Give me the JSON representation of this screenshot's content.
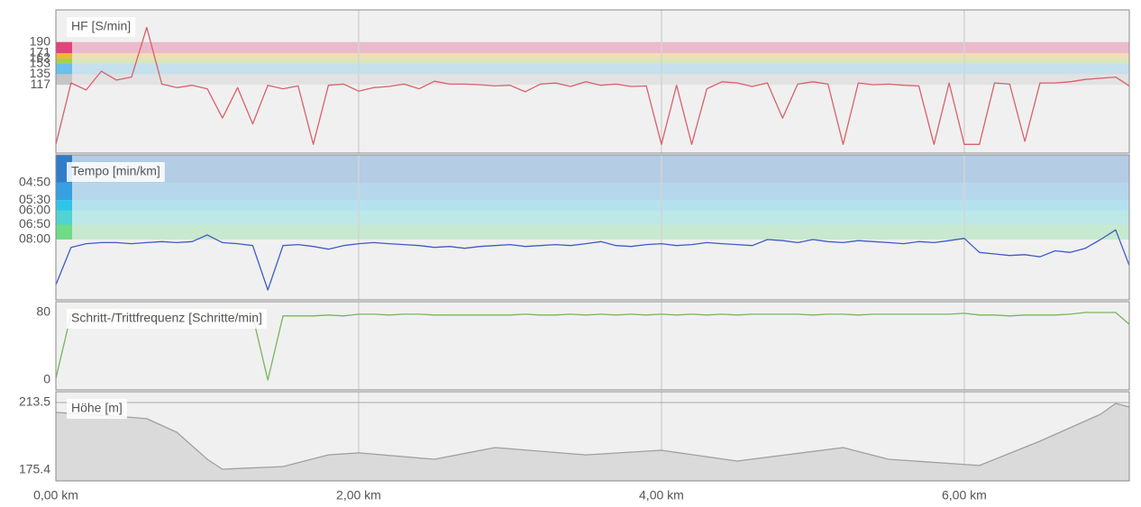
{
  "chart_data": [
    {
      "type": "line",
      "title": "HF [S/min]",
      "color": "#d9606b",
      "x": [
        0,
        0.1,
        0.2,
        0.3,
        0.4,
        0.5,
        0.6,
        0.7,
        0.8,
        0.9,
        1.0,
        1.1,
        1.2,
        1.3,
        1.4,
        1.5,
        1.6,
        1.7,
        1.8,
        1.9,
        2.0,
        2.1,
        2.2,
        2.3,
        2.4,
        2.5,
        2.6,
        2.7,
        2.8,
        2.9,
        3.0,
        3.1,
        3.2,
        3.3,
        3.4,
        3.5,
        3.6,
        3.7,
        3.8,
        3.9,
        4.0,
        4.1,
        4.2,
        4.3,
        4.4,
        4.5,
        4.6,
        4.7,
        4.8,
        4.9,
        5.0,
        5.1,
        5.2,
        5.3,
        5.4,
        5.5,
        5.6,
        5.7,
        5.8,
        5.9,
        6.0,
        6.1,
        6.2,
        6.3,
        6.4,
        6.5,
        6.6,
        6.7,
        6.8,
        6.9,
        7.0,
        7.09
      ],
      "values": [
        15,
        120,
        108,
        140,
        125,
        130,
        215,
        118,
        112,
        116,
        110,
        60,
        112,
        50,
        116,
        110,
        115,
        15,
        116,
        118,
        106,
        112,
        114,
        118,
        110,
        123,
        118,
        118,
        117,
        115,
        116,
        105,
        118,
        120,
        114,
        122,
        116,
        118,
        114,
        115,
        15,
        116,
        15,
        110,
        122,
        120,
        114,
        120,
        60,
        118,
        122,
        118,
        15,
        120,
        117,
        118,
        116,
        115,
        15,
        120,
        15,
        15,
        120,
        118,
        20,
        120,
        120,
        122,
        126,
        128,
        130,
        115
      ],
      "xlim": [
        0,
        7.09
      ],
      "ylim": [
        0,
        245
      ],
      "yticks": [
        190,
        171,
        162,
        153,
        135,
        117
      ],
      "band_colors": [
        "#e0306a",
        "#f0b020",
        "#9ecb3a",
        "#5bb8e6",
        "#c0c0c0"
      ]
    },
    {
      "type": "line",
      "title": "Tempo [min/km]",
      "color": "#3f5bc4",
      "yscale": "reciprocal",
      "x": [
        0,
        0.1,
        0.2,
        0.3,
        0.4,
        0.5,
        0.6,
        0.7,
        0.8,
        0.9,
        1.0,
        1.1,
        1.2,
        1.3,
        1.4,
        1.5,
        1.6,
        1.7,
        1.8,
        1.9,
        2.0,
        2.1,
        2.2,
        2.3,
        2.4,
        2.5,
        2.6,
        2.7,
        2.8,
        2.9,
        3.0,
        3.1,
        3.2,
        3.3,
        3.4,
        3.5,
        3.6,
        3.7,
        3.8,
        3.9,
        4.0,
        4.1,
        4.2,
        4.3,
        4.4,
        4.5,
        4.6,
        4.7,
        4.8,
        4.9,
        5.0,
        5.1,
        5.2,
        5.3,
        5.4,
        5.5,
        5.6,
        5.7,
        5.8,
        5.9,
        6.0,
        6.1,
        6.2,
        6.3,
        6.4,
        6.5,
        6.6,
        6.7,
        6.8,
        6.9,
        7.0,
        7.09
      ],
      "values": [
        16.7,
        8.8,
        8.4,
        8.3,
        8.3,
        8.4,
        8.3,
        8.2,
        8.3,
        8.2,
        7.6,
        8.3,
        8.4,
        8.6,
        19.1,
        8.6,
        8.5,
        8.7,
        9.0,
        8.6,
        8.4,
        8.3,
        8.4,
        8.5,
        8.6,
        8.8,
        8.7,
        8.9,
        8.7,
        8.6,
        8.5,
        8.7,
        8.6,
        8.5,
        8.6,
        8.4,
        8.2,
        8.6,
        8.7,
        8.5,
        8.4,
        8.6,
        8.5,
        8.3,
        8.4,
        8.5,
        8.6,
        8.0,
        8.1,
        8.3,
        8.0,
        8.2,
        8.3,
        8.1,
        8.2,
        8.3,
        8.4,
        8.2,
        8.3,
        8.1,
        7.9,
        9.4,
        9.6,
        9.8,
        9.7,
        10.0,
        9.2,
        9.4,
        8.9,
        8.0,
        7.2,
        11.4
      ],
      "xlim": [
        0,
        7.09
      ],
      "ylim": [
        26.3,
        4.05
      ],
      "yticks": [
        {
          "value": 4.8333,
          "label": "04:50"
        },
        {
          "value": 5.5,
          "label": "05:30"
        },
        {
          "value": 6,
          "label": "06:00"
        },
        {
          "value": 6.8333,
          "label": "06:50"
        },
        {
          "value": 8,
          "label": "08:00"
        }
      ],
      "band_colors": [
        "#1a6fc4",
        "#2196e0",
        "#15c0e8",
        "#3ccfcf",
        "#5ed87a"
      ]
    },
    {
      "type": "line",
      "title": "Schritt-/Trittfrequenz [Schritte/min]",
      "color": "#7ab55c",
      "x": [
        0,
        0.1,
        0.2,
        0.3,
        0.4,
        0.5,
        0.6,
        0.7,
        0.8,
        0.9,
        1.0,
        1.1,
        1.2,
        1.3,
        1.4,
        1.5,
        1.6,
        1.7,
        1.8,
        1.9,
        2.0,
        2.1,
        2.2,
        2.3,
        2.4,
        2.5,
        2.6,
        2.7,
        2.8,
        2.9,
        3.0,
        3.1,
        3.2,
        3.3,
        3.4,
        3.5,
        3.6,
        3.7,
        3.8,
        3.9,
        4.0,
        4.1,
        4.2,
        4.3,
        4.4,
        4.5,
        4.6,
        4.7,
        4.8,
        4.9,
        5.0,
        5.1,
        5.2,
        5.3,
        5.4,
        5.5,
        5.6,
        5.7,
        5.8,
        5.9,
        6.0,
        6.1,
        6.2,
        6.3,
        6.4,
        6.5,
        6.6,
        6.7,
        6.8,
        6.9,
        7.0,
        7.09
      ],
      "values": [
        2,
        78,
        77,
        76,
        77,
        76,
        77,
        76,
        76,
        77,
        76,
        76,
        77,
        76,
        0,
        76,
        76,
        76,
        77,
        76,
        78,
        78,
        77,
        78,
        78,
        77,
        77,
        77,
        77,
        77,
        77,
        78,
        77,
        77,
        78,
        77,
        78,
        77,
        78,
        77,
        78,
        77,
        78,
        77,
        78,
        77,
        78,
        78,
        78,
        78,
        77,
        78,
        78,
        77,
        78,
        78,
        78,
        78,
        78,
        78,
        79,
        77,
        77,
        76,
        77,
        77,
        77,
        78,
        80,
        80,
        80,
        66
      ],
      "xlim": [
        0,
        7.09
      ],
      "ylim": [
        -11.7,
        92.8
      ],
      "yticks": [
        80,
        0
      ]
    },
    {
      "type": "area",
      "title": "Höhe [m]",
      "color": "#a0a0a0",
      "fill_color": "#dadada",
      "x": [
        0,
        0.3,
        0.6,
        0.8,
        1.0,
        1.1,
        1.5,
        1.8,
        2.0,
        2.5,
        2.9,
        3.5,
        4.0,
        4.5,
        5.2,
        5.5,
        6.1,
        6.5,
        6.9,
        7.0,
        7.09
      ],
      "values": [
        207.9,
        206.5,
        204.4,
        196.7,
        181.5,
        175.9,
        177.4,
        184.0,
        185.1,
        181.5,
        188.1,
        184.0,
        186.6,
        180.5,
        188.1,
        181.5,
        178.0,
        191.7,
        206.9,
        213.0,
        211.0
      ],
      "xlim": [
        0,
        7.09
      ],
      "ylim": [
        169.3,
        219.6
      ],
      "yticks": [
        213.5,
        175.4
      ],
      "xticks": [
        {
          "value": 0,
          "label": "0,00 km"
        },
        {
          "value": 2,
          "label": "2,00 km"
        },
        {
          "value": 4,
          "label": "4,00 km"
        },
        {
          "value": 6,
          "label": "6,00 km"
        }
      ]
    }
  ]
}
